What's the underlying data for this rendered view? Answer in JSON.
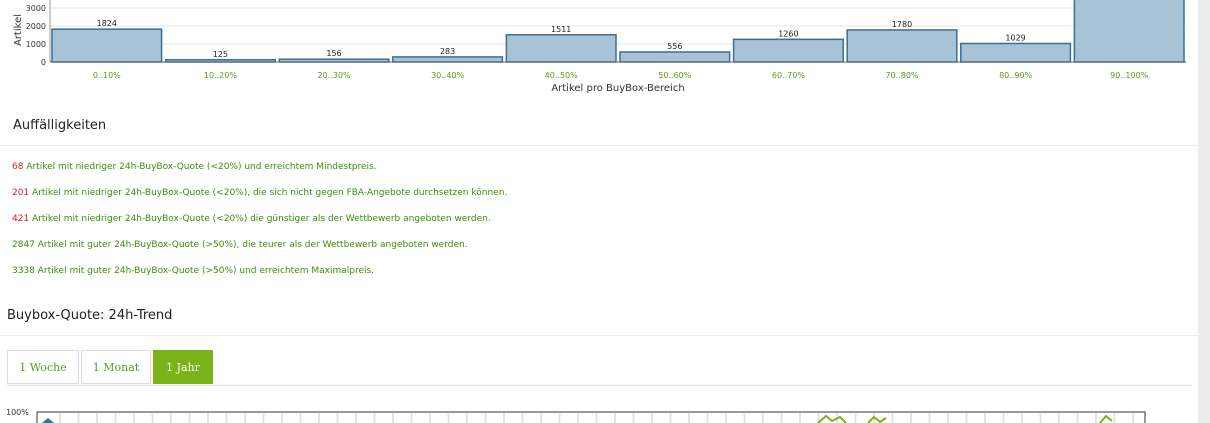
{
  "chart_data": {
    "type": "bar",
    "categories": [
      "0..10%",
      "10..20%",
      "20..30%",
      "30..40%",
      "40..50%",
      "50..60%",
      "60..70%",
      "70..80%",
      "80..90%",
      "90..100%"
    ],
    "values": [
      1824,
      125,
      156,
      283,
      1511,
      556,
      1260,
      1780,
      1029,
      null
    ],
    "value_labels": [
      "1824",
      "125",
      "156",
      "283",
      "1511",
      "556",
      "1260",
      "1780",
      "1029",
      ""
    ],
    "y_ticks": [
      "0",
      "1000",
      "2000",
      "3000"
    ],
    "ylim": [
      0,
      3000
    ],
    "xlabel": "Artikel pro BuyBox-Bereich",
    "ylabel": "Artikel",
    "colors": {
      "bar_fill": "#a8c2d6",
      "bar_stroke": "#3a6f94"
    }
  },
  "sections": {
    "auffaelligkeiten_title": "Auffälligkeiten",
    "trend_title": "Buybox-Quote: 24h-Trend"
  },
  "findings": [
    {
      "count": "68",
      "color": "red",
      "text": " Artikel mit niedriger 24h-BuyBox-Quote (<20%) und erreichtem Mindestpreis."
    },
    {
      "count": "201",
      "color": "red",
      "text": " Artikel mit niedriger 24h-BuyBox-Quote (<20%), die sich nicht gegen FBA-Angebote durchsetzen können."
    },
    {
      "count": "421",
      "color": "red",
      "text": " Artikel mit niedriger 24h-BuyBox-Quote (<20%) die günstiger als der Wettbewerb angeboten werden."
    },
    {
      "count": "2847",
      "color": "green",
      "text": " Artikel mit guter 24h-BuyBox-Quote (>50%), die teurer als der Wettbewerb angeboten werden."
    },
    {
      "count": "3338",
      "color": "green",
      "text": " Artikel mit guter 24h-BuyBox-Quote (>50%) und erreichtem Maximalpreis."
    }
  ],
  "tabs": [
    {
      "label": "1 Woche",
      "active": false
    },
    {
      "label": "1 Monat",
      "active": false
    },
    {
      "label": "1 Jahr",
      "active": true
    }
  ],
  "trend_chart": {
    "y_top_label": "100%"
  },
  "colors": {
    "accent": "#7ab317",
    "alert": "#e01b1b",
    "link_green": "#3a8e10"
  }
}
